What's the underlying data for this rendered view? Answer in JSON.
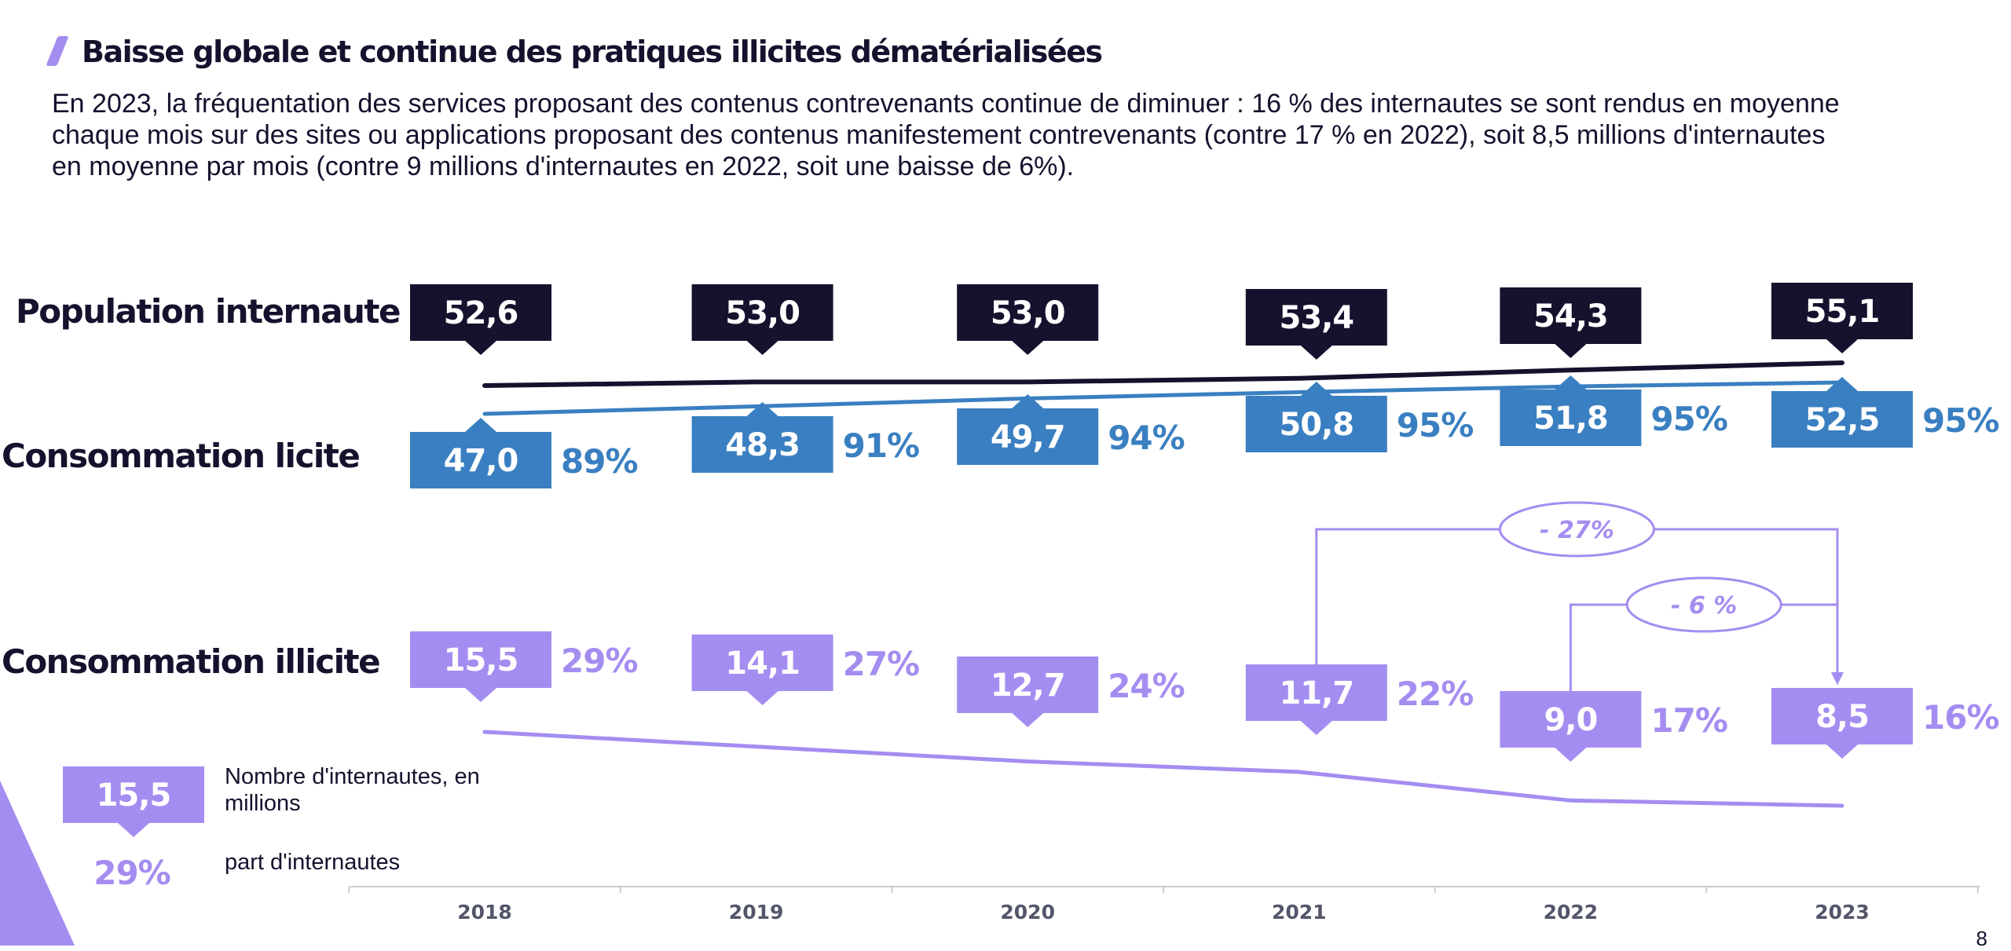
{
  "page": {
    "title": "Baisse globale et continue des pratiques illicites dématérialisées",
    "intro": "En 2023, la fréquentation des services proposant des contenus contrevenants continue de diminuer : 16 % des internautes se sont rendus en moyenne chaque mois sur des sites ou applications proposant des contenus manifestement contrevenants (contre 17 % en 2022), soit 8,5 millions d'internautes en moyenne par mois (contre 9 millions d'internautes en 2022,  soit une baisse de 6%).",
    "page_number": "8"
  },
  "colors": {
    "population": "#14122d",
    "licite": "#3a7fc1",
    "illicite": "#a48df0",
    "axis": "#c9ccd3"
  },
  "legend": {
    "box_value": "15,5",
    "box_text": "Nombre d'internautes, en millions",
    "pct_value": "29%",
    "pct_text": "part d'internautes"
  },
  "chart_data": {
    "type": "line",
    "categories": [
      "2018",
      "2019",
      "2020",
      "2021",
      "2022",
      "2023"
    ],
    "series": [
      {
        "name": "Population internaute",
        "values": [
          52.6,
          53.0,
          53.0,
          53.4,
          54.3,
          55.1
        ],
        "labels": [
          "52,6",
          "53,0",
          "53,0",
          "53,4",
          "54,3",
          "55,1"
        ],
        "shares": []
      },
      {
        "name": "Consommation licite",
        "values": [
          47.0,
          48.3,
          49.7,
          50.8,
          51.8,
          52.5
        ],
        "labels": [
          "47,0",
          "48,3",
          "49,7",
          "50,8",
          "51,8",
          "52,5"
        ],
        "shares": [
          "89%",
          "91%",
          "94%",
          "95%",
          "95%",
          "95%"
        ]
      },
      {
        "name": "Consommation illicite",
        "values": [
          15.5,
          14.1,
          12.7,
          11.7,
          9.0,
          8.5
        ],
        "labels": [
          "15,5",
          "14,1",
          "12,7",
          "11,7",
          "9,0",
          "8,5"
        ],
        "shares": [
          "29%",
          "27%",
          "24%",
          "22%",
          "17%",
          "16%"
        ]
      }
    ],
    "annotations": [
      {
        "label": "- 27%",
        "from": "2021",
        "to": "2023",
        "series": "Consommation illicite"
      },
      {
        "label": "- 6 %",
        "from": "2022",
        "to": "2023",
        "series": "Consommation illicite"
      }
    ]
  }
}
